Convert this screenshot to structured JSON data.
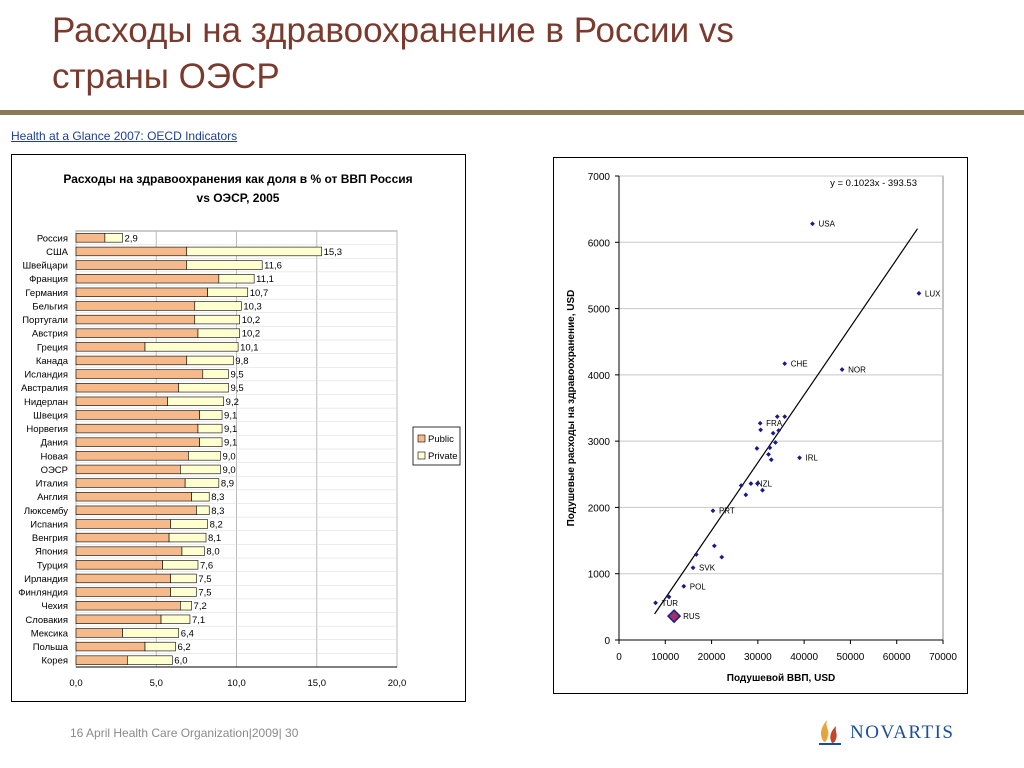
{
  "slide": {
    "title_line1": "Расходы на здравоохранение в России vs",
    "title_line2": "страны ОЭСР",
    "source_link": "Health at a Glance 2007: OECD Indicators",
    "footer": "16 April Health Care Organization|2009| 30",
    "logo_text": "NOVARTIS",
    "colors": {
      "title": "#7a3b2e",
      "rule": "#8b7a5a",
      "link": "#1f3d9a",
      "logo": "#1a4e9a",
      "flame": "#e8a33a"
    }
  },
  "chart_data": [
    {
      "type": "bar",
      "orientation": "horizontal",
      "stacked": true,
      "title_line1": "Расходы на здравоохранения как доля в % от ВВП Россия",
      "title_line2": "vs ОЭСР, 2005",
      "categories": [
        "Россия",
        "США",
        "Швейцари",
        "Франция",
        "Германия",
        "Бельгия",
        "Португали",
        "Австрия",
        "Греция",
        "Канада",
        "Исландия",
        "Австралия",
        "Нидерлан",
        "Швеция",
        "Норвегия",
        "Дания",
        "Новая",
        "ОЭСР",
        "Италия",
        "Англия",
        "Люксембу",
        "Испания",
        "Венгрия",
        "Япония",
        "Турция",
        "Ирландия",
        "Финляндия",
        "Чехия",
        "Словакия",
        "Мексика",
        "Польша",
        "Корея"
      ],
      "totals": [
        2.9,
        15.3,
        11.6,
        11.1,
        10.7,
        10.3,
        10.2,
        10.2,
        10.1,
        9.8,
        9.5,
        9.5,
        9.2,
        9.1,
        9.1,
        9.1,
        9.0,
        9.0,
        8.9,
        8.3,
        8.3,
        8.2,
        8.1,
        8.0,
        7.6,
        7.5,
        7.5,
        7.2,
        7.1,
        6.4,
        6.2,
        6.0
      ],
      "total_labels": [
        "2,9",
        "15,3",
        "11,6",
        "11,1",
        "10,7",
        "10,3",
        "10,2",
        "10,2",
        "10,1",
        "9,8",
        "9,5",
        "9,5",
        "9,2",
        "9,1",
        "9,1",
        "9,1",
        "9,0",
        "9,0",
        "8,9",
        "8,3",
        "8,3",
        "8,2",
        "8,1",
        "8,0",
        "7,6",
        "7,5",
        "7,5",
        "7,2",
        "7,1",
        "6,4",
        "6,2",
        "6,0"
      ],
      "series": [
        {
          "name": "Public",
          "color": "#f5b98a",
          "values": [
            1.8,
            6.9,
            6.9,
            8.9,
            8.2,
            7.4,
            7.4,
            7.6,
            4.3,
            6.9,
            7.9,
            6.4,
            5.7,
            7.7,
            7.6,
            7.7,
            7.0,
            6.5,
            6.8,
            7.2,
            7.5,
            5.9,
            5.8,
            6.6,
            5.4,
            5.9,
            5.9,
            6.5,
            5.3,
            2.9,
            4.3,
            3.2
          ]
        },
        {
          "name": "Private",
          "color": "#ffffd0",
          "values": [
            1.1,
            8.4,
            4.7,
            2.2,
            2.5,
            2.9,
            2.8,
            2.6,
            5.8,
            2.9,
            1.6,
            3.1,
            3.5,
            1.4,
            1.5,
            1.4,
            2.0,
            2.5,
            2.1,
            1.1,
            0.8,
            2.3,
            2.3,
            1.4,
            2.2,
            1.6,
            1.6,
            0.7,
            1.8,
            3.5,
            1.9,
            2.8
          ]
        }
      ],
      "xlim": [
        0,
        20
      ],
      "xticks": [
        0,
        5,
        10,
        15,
        20
      ],
      "xtick_labels": [
        "0,0",
        "5,0",
        "10,0",
        "15,0",
        "20,0"
      ],
      "legend_position": "right"
    },
    {
      "type": "scatter",
      "xlabel": "Подушевой ВВП, USD",
      "ylabel": "Подушевые расходы на здравоохранение, USD",
      "xlim": [
        0,
        70000
      ],
      "ylim": [
        0,
        7000
      ],
      "xticks": [
        0,
        10000,
        20000,
        30000,
        40000,
        50000,
        60000,
        70000
      ],
      "yticks": [
        0,
        1000,
        2000,
        3000,
        4000,
        5000,
        6000,
        7000
      ],
      "trendline_label": "y = 0.1023x - 393.53",
      "trendline": {
        "slope": 0.1023,
        "intercept": -393.53,
        "x_from": 7700,
        "x_to": 64500
      },
      "point_color": "#1a1a8c",
      "points": [
        {
          "x": 41800,
          "y": 6280,
          "label": "USA"
        },
        {
          "x": 64800,
          "y": 5230,
          "label": "LUX"
        },
        {
          "x": 35800,
          "y": 4170,
          "label": "CHE"
        },
        {
          "x": 48200,
          "y": 4080,
          "label": "NOR"
        },
        {
          "x": 30500,
          "y": 3270,
          "label": "FRA"
        },
        {
          "x": 39000,
          "y": 2750,
          "label": "IRL"
        },
        {
          "x": 28500,
          "y": 2360,
          "label": "NZL"
        },
        {
          "x": 20300,
          "y": 1950,
          "label": "PRT"
        },
        {
          "x": 16000,
          "y": 1090,
          "label": "SVK"
        },
        {
          "x": 14000,
          "y": 810,
          "label": "POL"
        },
        {
          "x": 7900,
          "y": 560,
          "label": "TUR"
        },
        {
          "x": 11900,
          "y": 360,
          "label": "RUS",
          "highlight": true
        },
        {
          "x": 34200,
          "y": 3370,
          "label": ""
        },
        {
          "x": 35800,
          "y": 3370,
          "label": ""
        },
        {
          "x": 30600,
          "y": 3170,
          "label": ""
        },
        {
          "x": 34500,
          "y": 3160,
          "label": ""
        },
        {
          "x": 33300,
          "y": 3120,
          "label": ""
        },
        {
          "x": 33800,
          "y": 2980,
          "label": ""
        },
        {
          "x": 32600,
          "y": 2900,
          "label": ""
        },
        {
          "x": 29800,
          "y": 2890,
          "label": ""
        },
        {
          "x": 32300,
          "y": 2800,
          "label": ""
        },
        {
          "x": 32900,
          "y": 2720,
          "label": ""
        },
        {
          "x": 26400,
          "y": 2330,
          "label": ""
        },
        {
          "x": 29900,
          "y": 2360,
          "label": ""
        },
        {
          "x": 31000,
          "y": 2260,
          "label": ""
        },
        {
          "x": 27400,
          "y": 2190,
          "label": ""
        },
        {
          "x": 20600,
          "y": 1420,
          "label": ""
        },
        {
          "x": 22200,
          "y": 1250,
          "label": ""
        },
        {
          "x": 16700,
          "y": 1290,
          "label": ""
        },
        {
          "x": 10800,
          "y": 650,
          "label": ""
        }
      ]
    }
  ]
}
